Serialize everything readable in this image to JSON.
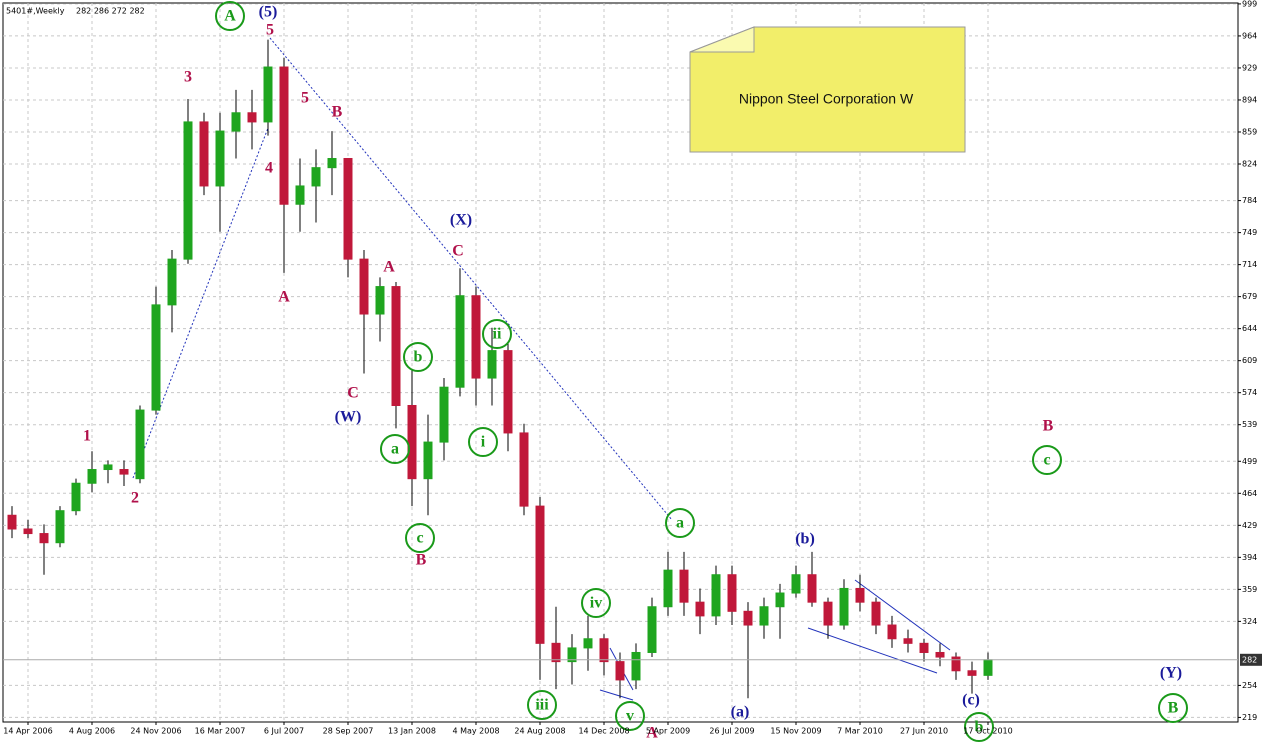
{
  "chart_data": {
    "type": "candlestick",
    "title": "5401#,Weekly",
    "ohlc_text": "282 286 272 282",
    "note": "Nippon Steel Corporation W",
    "categories": [
      null,
      "14 Apr 2006",
      null,
      null,
      null,
      "4 Aug 2006",
      null,
      null,
      null,
      "24 Nov 2006",
      null,
      null,
      null,
      "16 Mar 2007",
      null,
      null,
      null,
      "6 Jul 2007",
      null,
      null,
      null,
      "28 Sep 2007",
      null,
      null,
      null,
      "13 Jan 2008",
      null,
      null,
      null,
      "4 May 2008",
      null,
      null,
      null,
      "24 Aug 2008",
      null,
      null,
      null,
      "14 Dec 2008",
      null,
      null,
      null,
      "5 Apr 2009",
      null,
      null,
      null,
      "26 Jul 2009",
      null,
      null,
      null,
      "15 Nov 2009",
      null,
      null,
      null,
      "7 Mar 2010",
      null,
      null,
      null,
      "27 Jun 2010",
      null,
      null,
      null,
      "17 Oct 2010"
    ],
    "open": [
      440,
      425,
      420,
      410,
      445,
      475,
      490,
      490,
      480,
      555,
      670,
      720,
      870,
      800,
      860,
      880,
      870,
      930,
      780,
      800,
      820,
      830,
      720,
      660,
      690,
      560,
      480,
      520,
      580,
      680,
      590,
      620,
      530,
      450,
      300,
      280,
      295,
      305,
      280,
      260,
      290,
      340,
      380,
      345,
      330,
      375,
      335,
      320,
      340,
      355,
      375,
      345,
      320,
      360,
      345,
      320,
      305,
      300,
      290,
      285,
      270,
      265
    ],
    "high": [
      450,
      435,
      430,
      450,
      480,
      510,
      500,
      500,
      560,
      690,
      730,
      895,
      880,
      880,
      905,
      905,
      960,
      940,
      830,
      840,
      860,
      830,
      730,
      700,
      695,
      600,
      550,
      590,
      710,
      690,
      645,
      630,
      540,
      460,
      340,
      310,
      330,
      310,
      290,
      300,
      350,
      400,
      400,
      360,
      385,
      385,
      345,
      350,
      365,
      385,
      400,
      350,
      370,
      375,
      350,
      330,
      315,
      305,
      300,
      290,
      280,
      290
    ],
    "low": [
      415,
      415,
      375,
      405,
      440,
      465,
      475,
      472,
      475,
      550,
      640,
      715,
      790,
      750,
      830,
      840,
      855,
      705,
      750,
      760,
      790,
      700,
      595,
      630,
      535,
      450,
      440,
      500,
      570,
      560,
      560,
      510,
      440,
      260,
      250,
      255,
      270,
      265,
      240,
      250,
      285,
      330,
      330,
      310,
      320,
      320,
      240,
      305,
      305,
      350,
      340,
      305,
      315,
      335,
      310,
      295,
      290,
      280,
      275,
      260,
      245,
      260
    ],
    "close": [
      425,
      420,
      410,
      445,
      475,
      490,
      495,
      485,
      555,
      670,
      720,
      870,
      800,
      860,
      880,
      870,
      930,
      780,
      800,
      820,
      830,
      720,
      660,
      690,
      560,
      480,
      520,
      580,
      680,
      590,
      620,
      530,
      450,
      300,
      280,
      295,
      305,
      280,
      260,
      290,
      340,
      380,
      345,
      330,
      375,
      335,
      320,
      340,
      355,
      375,
      345,
      320,
      360,
      345,
      320,
      305,
      300,
      290,
      285,
      270,
      265,
      282
    ],
    "up_color": "#1fa51f",
    "down_color": "#c0183a",
    "ylim": [
      214,
      1000
    ],
    "yticks": [
      219,
      254,
      324,
      359,
      394,
      429,
      464,
      499,
      539,
      574,
      609,
      644,
      679,
      714,
      749,
      784,
      824,
      859,
      894,
      929,
      964,
      999
    ],
    "last_price": 282,
    "grid": true,
    "annotations": [
      {
        "text": "A",
        "color": "#1a9a1a",
        "circled": true
      },
      {
        "text": "(5)",
        "color": "#1a1a9a",
        "circled": false
      },
      {
        "text": "5",
        "color": "#b0104a",
        "circled": false
      },
      {
        "text": "3",
        "color": "#b0104a",
        "circled": false
      },
      {
        "text": "5",
        "color": "#b0104a",
        "circled": false
      },
      {
        "text": "B",
        "color": "#b0104a",
        "circled": false
      },
      {
        "text": "4",
        "color": "#b0104a",
        "circled": false
      },
      {
        "text": "A",
        "color": "#b0104a",
        "circled": false
      },
      {
        "text": "1",
        "color": "#b0104a",
        "circled": false
      },
      {
        "text": "2",
        "color": "#b0104a",
        "circled": false
      },
      {
        "text": "(X)",
        "color": "#1a1a9a",
        "circled": false
      },
      {
        "text": "C",
        "color": "#b0104a",
        "circled": false
      },
      {
        "text": "A",
        "color": "#b0104a",
        "circled": false
      },
      {
        "text": "ii",
        "color": "#1a9a1a",
        "circled": true
      },
      {
        "text": "b",
        "color": "#1a9a1a",
        "circled": true
      },
      {
        "text": "C",
        "color": "#b0104a",
        "circled": false
      },
      {
        "text": "(W)",
        "color": "#1a1a9a",
        "circled": false
      },
      {
        "text": "a",
        "color": "#1a9a1a",
        "circled": true
      },
      {
        "text": "i",
        "color": "#1a9a1a",
        "circled": true
      },
      {
        "text": "c",
        "color": "#1a9a1a",
        "circled": true
      },
      {
        "text": "B",
        "color": "#b0104a",
        "circled": false
      },
      {
        "text": "a",
        "color": "#1a9a1a",
        "circled": true
      },
      {
        "text": "(b)",
        "color": "#1a1a9a",
        "circled": false
      },
      {
        "text": "iv",
        "color": "#1a9a1a",
        "circled": true
      },
      {
        "text": "iii",
        "color": "#1a9a1a",
        "circled": true
      },
      {
        "text": "v",
        "color": "#1a9a1a",
        "circled": true
      },
      {
        "text": "A",
        "color": "#b0104a",
        "circled": false
      },
      {
        "text": "(a)",
        "color": "#1a1a9a",
        "circled": false
      },
      {
        "text": "(c)",
        "color": "#1a1a9a",
        "circled": false
      },
      {
        "text": "b",
        "color": "#1a9a1a",
        "circled": true
      },
      {
        "text": "B",
        "color": "#b0104a",
        "circled": false
      },
      {
        "text": "c",
        "color": "#1a9a1a",
        "circled": true
      },
      {
        "text": "(Y)",
        "color": "#1a1a9a",
        "circled": false
      },
      {
        "text": "B",
        "color": "#1a9a1a",
        "circled": true
      }
    ]
  }
}
